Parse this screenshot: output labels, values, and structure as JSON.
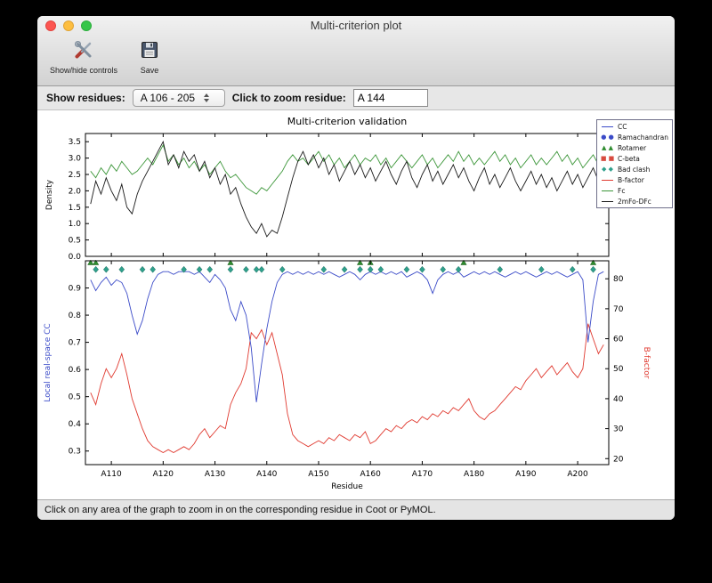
{
  "window": {
    "title": "Multi-criterion plot"
  },
  "toolbar": {
    "show_hide_label": "Show/hide controls",
    "save_label": "Save"
  },
  "controls": {
    "show_residues_label": "Show residues:",
    "residue_range_value": "A 106 - 205",
    "zoom_label": "Click to zoom residue:",
    "zoom_value": "A 144"
  },
  "statusbar": {
    "text": "Click on any area of the graph to zoom in on the corresponding residue in Coot or PyMOL."
  },
  "chart_data": {
    "type": "line",
    "title": "Multi-criterion validation",
    "xlabel": "Residue",
    "x_start": 106,
    "xlim": [
      105,
      206
    ],
    "x_ticks": [
      110,
      120,
      130,
      140,
      150,
      160,
      170,
      180,
      190,
      200
    ],
    "x_tick_labels": [
      "A110",
      "A120",
      "A130",
      "A140",
      "A150",
      "A160",
      "A170",
      "A180",
      "A190",
      "A200"
    ],
    "top_panel": {
      "ylabel": "Density",
      "ylim": [
        0,
        3.75
      ],
      "yticks": [
        0.0,
        0.5,
        1.0,
        1.5,
        2.0,
        2.5,
        3.0,
        3.5
      ],
      "series": [
        {
          "name": "Fc",
          "color": "#3c9639",
          "values": [
            2.6,
            2.4,
            2.7,
            2.5,
            2.8,
            2.6,
            2.9,
            2.7,
            2.5,
            2.6,
            2.8,
            3.0,
            2.8,
            3.1,
            3.4,
            2.9,
            3.1,
            2.8,
            3.0,
            2.7,
            2.9,
            2.6,
            2.8,
            2.5,
            2.7,
            2.9,
            2.6,
            2.4,
            2.5,
            2.3,
            2.1,
            2.0,
            1.9,
            2.1,
            2.0,
            2.2,
            2.4,
            2.6,
            2.9,
            3.1,
            2.9,
            3.0,
            2.8,
            3.0,
            3.2,
            2.9,
            3.1,
            2.8,
            3.0,
            2.7,
            2.9,
            3.1,
            2.8,
            3.0,
            2.9,
            3.1,
            2.8,
            3.0,
            2.7,
            2.9,
            3.1,
            2.9,
            2.7,
            2.9,
            3.1,
            2.8,
            3.0,
            2.7,
            2.9,
            3.1,
            2.9,
            3.2,
            2.9,
            3.1,
            2.8,
            3.0,
            2.8,
            3.0,
            3.2,
            2.9,
            3.1,
            2.8,
            3.0,
            2.7,
            2.9,
            3.1,
            2.8,
            3.0,
            2.8,
            3.0,
            3.2,
            2.9,
            3.1,
            2.8,
            3.0,
            2.7,
            2.9,
            3.1,
            2.8,
            3.0
          ]
        },
        {
          "name": "2mFo-DFc",
          "color": "#1a1a1a",
          "values": [
            1.6,
            2.3,
            1.9,
            2.4,
            2.0,
            1.7,
            2.2,
            1.5,
            1.3,
            1.9,
            2.3,
            2.6,
            2.9,
            3.2,
            3.5,
            2.8,
            3.1,
            2.7,
            3.2,
            2.9,
            3.1,
            2.6,
            2.9,
            2.4,
            2.7,
            2.2,
            2.5,
            1.9,
            2.1,
            1.6,
            1.2,
            0.9,
            0.7,
            1.0,
            0.6,
            0.8,
            0.7,
            1.2,
            1.8,
            2.4,
            2.9,
            3.2,
            2.8,
            3.1,
            2.7,
            3.0,
            2.5,
            2.8,
            2.3,
            2.6,
            2.9,
            2.5,
            2.8,
            2.4,
            2.7,
            2.3,
            2.6,
            2.9,
            2.5,
            2.2,
            2.6,
            2.9,
            2.4,
            2.1,
            2.5,
            2.8,
            2.3,
            2.6,
            2.2,
            2.5,
            2.8,
            2.4,
            2.7,
            2.3,
            2.0,
            2.4,
            2.7,
            2.2,
            2.5,
            2.1,
            2.4,
            2.7,
            2.3,
            2.0,
            2.3,
            2.6,
            2.2,
            2.5,
            2.1,
            2.4,
            2.0,
            2.3,
            2.6,
            2.2,
            2.5,
            2.1,
            2.4,
            2.7,
            2.3,
            2.6
          ]
        }
      ]
    },
    "bottom_panel": {
      "ylabel_left": "Local real-space CC",
      "ylabel_left_color": "#3b4bc8",
      "ylim_left": [
        0.25,
        1.0
      ],
      "yticks_left": [
        0.3,
        0.4,
        0.5,
        0.6,
        0.7,
        0.8,
        0.9
      ],
      "ylabel_right": "B-factor",
      "ylabel_right_color": "#e03a30",
      "ylim_right": [
        18,
        86
      ],
      "yticks_right": [
        20,
        30,
        40,
        50,
        60,
        70,
        80
      ],
      "series_left": {
        "name": "CC",
        "color": "#3b4bc8",
        "values": [
          0.93,
          0.89,
          0.92,
          0.94,
          0.91,
          0.93,
          0.92,
          0.88,
          0.8,
          0.73,
          0.78,
          0.86,
          0.92,
          0.95,
          0.96,
          0.96,
          0.95,
          0.96,
          0.96,
          0.96,
          0.95,
          0.96,
          0.94,
          0.92,
          0.95,
          0.93,
          0.9,
          0.82,
          0.78,
          0.85,
          0.8,
          0.68,
          0.48,
          0.62,
          0.75,
          0.85,
          0.92,
          0.95,
          0.96,
          0.95,
          0.96,
          0.95,
          0.96,
          0.95,
          0.96,
          0.95,
          0.96,
          0.95,
          0.94,
          0.95,
          0.96,
          0.95,
          0.93,
          0.95,
          0.96,
          0.95,
          0.96,
          0.95,
          0.96,
          0.95,
          0.96,
          0.94,
          0.95,
          0.96,
          0.95,
          0.93,
          0.88,
          0.93,
          0.95,
          0.96,
          0.95,
          0.96,
          0.94,
          0.95,
          0.96,
          0.95,
          0.96,
          0.95,
          0.96,
          0.95,
          0.94,
          0.95,
          0.96,
          0.95,
          0.96,
          0.95,
          0.94,
          0.95,
          0.96,
          0.95,
          0.96,
          0.95,
          0.94,
          0.95,
          0.96,
          0.93,
          0.7,
          0.85,
          0.95,
          0.96
        ]
      },
      "series_right": {
        "name": "B-factor",
        "color": "#e03a30",
        "values": [
          42,
          38,
          45,
          50,
          47,
          50,
          55,
          48,
          40,
          35,
          30,
          26,
          24,
          23,
          22,
          23,
          22,
          23,
          24,
          23,
          25,
          28,
          30,
          27,
          29,
          31,
          30,
          38,
          42,
          45,
          50,
          62,
          60,
          63,
          58,
          62,
          55,
          48,
          35,
          28,
          26,
          25,
          24,
          25,
          26,
          25,
          27,
          26,
          28,
          27,
          26,
          28,
          27,
          29,
          25,
          26,
          28,
          30,
          29,
          31,
          30,
          32,
          33,
          32,
          34,
          33,
          35,
          34,
          36,
          35,
          37,
          36,
          38,
          40,
          36,
          34,
          33,
          35,
          36,
          38,
          40,
          42,
          44,
          43,
          46,
          48,
          50,
          47,
          49,
          51,
          48,
          50,
          52,
          49,
          47,
          50,
          65,
          60,
          55,
          58
        ]
      },
      "markers": [
        {
          "name": "Rotamer",
          "shape": "triangle",
          "color": "#2e8b2e",
          "y": 0.993,
          "residues": [
            106,
            107,
            133,
            158,
            160,
            178,
            203
          ]
        },
        {
          "name": "Bad clash",
          "shape": "diamond",
          "color": "#2fa08c",
          "y": 0.968,
          "residues": [
            107,
            109,
            112,
            116,
            118,
            124,
            127,
            129,
            133,
            136,
            138,
            139,
            143,
            151,
            155,
            158,
            160,
            162,
            167,
            170,
            174,
            177,
            185,
            193,
            199,
            203
          ]
        }
      ]
    },
    "legend": [
      {
        "label": "CC",
        "marker": "line",
        "color": "#3b4bc8"
      },
      {
        "label": "Ramachandran",
        "marker": "circle",
        "color": "#3b4bc8"
      },
      {
        "label": "Rotamer",
        "marker": "triangle",
        "color": "#2e8b2e"
      },
      {
        "label": "C-beta",
        "marker": "square",
        "color": "#d84b40"
      },
      {
        "label": "Bad clash",
        "marker": "diamond",
        "color": "#2fa08c"
      },
      {
        "label": "B-factor",
        "marker": "line",
        "color": "#e03a30"
      },
      {
        "label": "Fc",
        "marker": "line",
        "color": "#3c9639"
      },
      {
        "label": "2mFo-DFc",
        "marker": "line",
        "color": "#1a1a1a"
      }
    ]
  }
}
